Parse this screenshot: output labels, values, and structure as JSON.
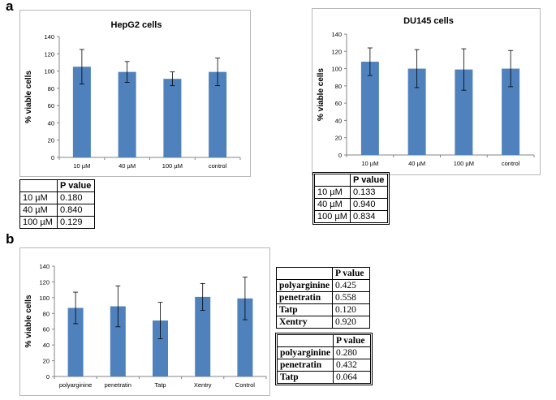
{
  "panel_labels": {
    "a": "a",
    "b": "b"
  },
  "colors": {
    "bar": "#4f81bd",
    "axis": "#868686",
    "border": "#b8b8b8"
  },
  "chart_data": [
    {
      "id": "hepg2",
      "type": "bar",
      "title": "HepG2 cells",
      "xlabel": "",
      "ylabel": "% viable cells",
      "ylim": [
        0,
        140
      ],
      "yticks": [
        0,
        20,
        40,
        60,
        80,
        100,
        120,
        140
      ],
      "grid": false,
      "categories": [
        "10 µM",
        "40 µM",
        "100 µM",
        "control"
      ],
      "values": [
        105,
        99,
        91,
        99
      ],
      "errors": [
        20,
        12,
        8,
        16
      ]
    },
    {
      "id": "du145",
      "type": "bar",
      "title": "DU145 cells",
      "xlabel": "",
      "ylabel": "% viable cells",
      "ylim": [
        0,
        140
      ],
      "yticks": [
        0,
        20,
        40,
        60,
        80,
        100,
        120,
        140
      ],
      "grid": false,
      "categories": [
        "10 µM",
        "40 µM",
        "100 µM",
        "control"
      ],
      "values": [
        108,
        100,
        99,
        100
      ],
      "errors": [
        16,
        22,
        24,
        21
      ]
    },
    {
      "id": "peptides",
      "type": "bar",
      "title": "",
      "xlabel": "",
      "ylabel": "% viable cells",
      "ylim": [
        0,
        140
      ],
      "yticks": [
        0,
        20,
        40,
        60,
        80,
        100,
        120,
        140
      ],
      "grid": false,
      "categories": [
        "polyarginine",
        "penetratin",
        "Tatp",
        "Xentry",
        "Control"
      ],
      "values": [
        87,
        89,
        71,
        101,
        99
      ],
      "errors": [
        20,
        26,
        23,
        17,
        27
      ]
    }
  ],
  "tables": {
    "hepg2": {
      "header": [
        "",
        "P value"
      ],
      "rows": [
        [
          "10 µM",
          "0.180"
        ],
        [
          "40 µM",
          "0.840"
        ],
        [
          "100 µM",
          "0.129"
        ]
      ]
    },
    "du145": {
      "header": [
        "",
        "P value"
      ],
      "rows": [
        [
          "10 µM",
          "0.133"
        ],
        [
          "40 µM",
          "0.940"
        ],
        [
          "100 µM",
          "0.834"
        ]
      ]
    },
    "b_hepg2": {
      "header": [
        "",
        "P value"
      ],
      "rows": [
        [
          "polyarginine",
          "0.425"
        ],
        [
          "penetratin",
          "0.558"
        ],
        [
          "Tatp",
          "0.120"
        ],
        [
          "Xentry",
          "0.920"
        ]
      ]
    },
    "b_du145": {
      "header": [
        "",
        "P value"
      ],
      "rows": [
        [
          "polyarginine",
          "0.280"
        ],
        [
          "penetratin",
          "0.432"
        ],
        [
          "Tatp",
          "0.064"
        ]
      ]
    }
  }
}
